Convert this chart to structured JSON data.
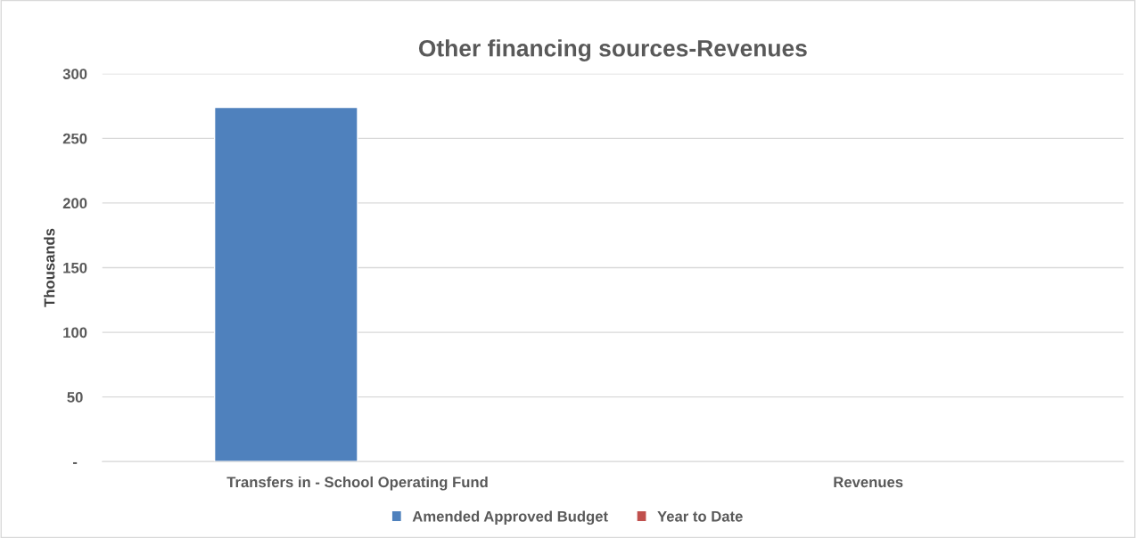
{
  "chart_data": {
    "type": "bar",
    "title": "Other financing sources-Revenues",
    "ylabel": "Thousands",
    "categories": [
      "Transfers in - School Operating Fund",
      "Revenues"
    ],
    "series": [
      {
        "name": "Amended Approved Budget",
        "color": "#4f81bd",
        "values": [
          274,
          null
        ]
      },
      {
        "name": "Year to Date",
        "color": "#c0504d",
        "values": [
          null,
          null
        ]
      }
    ],
    "ylim": [
      0,
      300
    ],
    "yticks": [
      {
        "value": 0,
        "label": "-"
      },
      50,
      100,
      150,
      200,
      250,
      300
    ],
    "grid": "y",
    "legend": "bottom"
  }
}
